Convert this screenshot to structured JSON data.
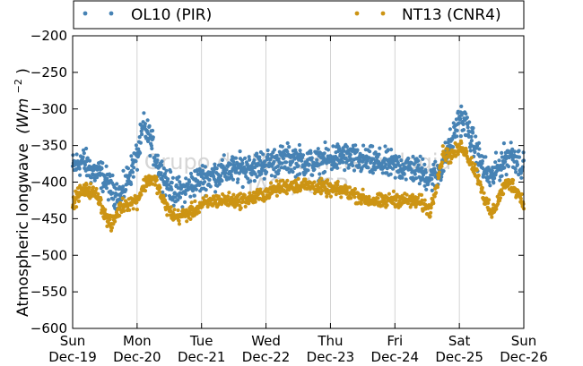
{
  "chart_data": {
    "type": "scatter",
    "xlabel": "",
    "ylabel": "Atmospheric longwave",
    "ylabel_unit": "(Wm",
    "ylabel_unit_exp": "−2",
    "ylabel_unit_close": ")",
    "ylim": [
      -600,
      -200
    ],
    "yticks": [
      -200,
      -250,
      -300,
      -350,
      -400,
      -450,
      -500,
      -550,
      -600
    ],
    "ytick_labels": [
      "−200",
      "−250",
      "−300",
      "−350",
      "−400",
      "−450",
      "−500",
      "−550",
      "−600"
    ],
    "xlim": [
      0,
      7
    ],
    "xticks": [
      {
        "pos": 0,
        "day": "Sun",
        "date": "Dec-19"
      },
      {
        "pos": 1,
        "day": "Mon",
        "date": "Dec-20"
      },
      {
        "pos": 2,
        "day": "Tue",
        "date": "Dec-21"
      },
      {
        "pos": 3,
        "day": "Wed",
        "date": "Dec-22"
      },
      {
        "pos": 4,
        "day": "Thu",
        "date": "Dec-23"
      },
      {
        "pos": 5,
        "day": "Fri",
        "date": "Dec-24"
      },
      {
        "pos": 6,
        "day": "Sat",
        "date": "Dec-25"
      },
      {
        "pos": 7,
        "day": "Sun",
        "date": "Dec-26"
      }
    ],
    "grid": true,
    "legend_placement": "top-outside",
    "watermark": [
      "Grupo de Micrometeorologia",
      "IAG / USP"
    ],
    "series": [
      {
        "name": "OL10 (PIR)",
        "color": "#4682b4",
        "x": [
          0,
          0.15,
          0.3,
          0.45,
          0.6,
          0.75,
          0.85,
          1.0,
          1.05,
          1.1,
          1.2,
          1.3,
          1.4,
          1.5,
          1.6,
          1.75,
          1.9,
          2.0,
          2.2,
          2.4,
          2.6,
          2.8,
          3.0,
          3.2,
          3.4,
          3.6,
          3.8,
          4.0,
          4.2,
          4.4,
          4.6,
          4.8,
          5.0,
          5.2,
          5.4,
          5.55,
          5.7,
          5.85,
          5.95,
          6.0,
          6.1,
          6.2,
          6.3,
          6.4,
          6.5,
          6.6,
          6.7,
          6.8,
          6.9,
          7.0
        ],
        "y": [
          -380,
          -370,
          -385,
          -390,
          -410,
          -420,
          -395,
          -365,
          -345,
          -325,
          -340,
          -370,
          -390,
          -405,
          -415,
          -410,
          -400,
          -395,
          -390,
          -385,
          -382,
          -378,
          -375,
          -370,
          -368,
          -372,
          -375,
          -368,
          -365,
          -370,
          -372,
          -375,
          -378,
          -380,
          -385,
          -395,
          -385,
          -350,
          -330,
          -310,
          -320,
          -345,
          -365,
          -385,
          -395,
          -380,
          -370,
          -360,
          -370,
          -380
        ]
      },
      {
        "name": "NT13 (CNR4)",
        "color": "#cc9414",
        "x": [
          0,
          0.1,
          0.25,
          0.4,
          0.5,
          0.6,
          0.7,
          0.8,
          0.9,
          1.0,
          1.1,
          1.2,
          1.3,
          1.4,
          1.5,
          1.6,
          1.75,
          1.85,
          2.0,
          2.2,
          2.4,
          2.6,
          2.8,
          3.0,
          3.2,
          3.4,
          3.6,
          3.8,
          4.0,
          4.2,
          4.4,
          4.6,
          4.8,
          5.0,
          5.2,
          5.4,
          5.55,
          5.65,
          5.75,
          5.85,
          6.0,
          6.05,
          6.1,
          6.2,
          6.3,
          6.4,
          6.5,
          6.6,
          6.7,
          6.8,
          6.9,
          7.0
        ],
        "y": [
          -430,
          -415,
          -410,
          -420,
          -445,
          -460,
          -440,
          -430,
          -428,
          -425,
          -405,
          -395,
          -400,
          -425,
          -440,
          -448,
          -445,
          -440,
          -432,
          -425,
          -425,
          -425,
          -422,
          -415,
          -408,
          -404,
          -404,
          -406,
          -410,
          -412,
          -418,
          -425,
          -427,
          -423,
          -425,
          -428,
          -440,
          -400,
          -360,
          -365,
          -355,
          -350,
          -360,
          -375,
          -395,
          -425,
          -445,
          -425,
          -405,
          -402,
          -412,
          -430
        ]
      }
    ]
  }
}
